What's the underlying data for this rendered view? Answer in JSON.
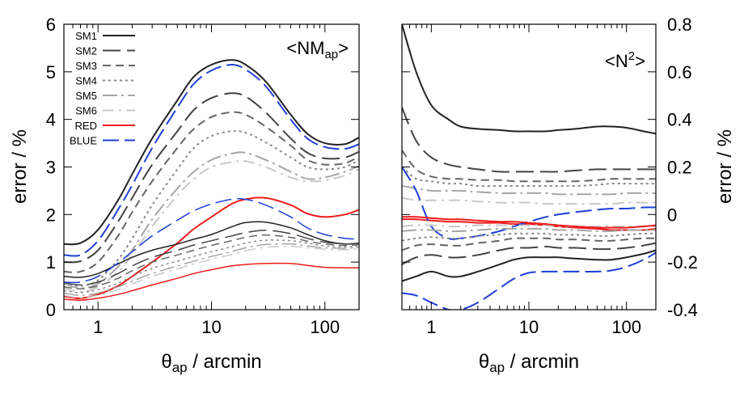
{
  "chart_data": [
    {
      "type": "line",
      "panel": "left",
      "annotation": "<NMap>",
      "xlabel": "θap / arcmin",
      "ylabel": "error / %",
      "xscale": "log",
      "xlim": [
        0.5,
        200
      ],
      "ylim": [
        0,
        6
      ],
      "x_ticks": [
        1,
        10,
        100
      ],
      "y_ticks": [
        0,
        1,
        2,
        3,
        4,
        5,
        6
      ],
      "y_axis_side": "left",
      "grid": false,
      "legend_position": "top-left",
      "x": [
        0.5,
        0.7,
        1,
        1.5,
        2,
        3,
        5,
        7,
        10,
        15,
        20,
        30,
        50,
        70,
        100,
        150,
        200
      ],
      "series": [
        {
          "name": "SM1",
          "color": "#222222",
          "dash": "solid",
          "width": 2,
          "values": [
            1.38,
            1.4,
            1.68,
            2.3,
            2.85,
            3.6,
            4.4,
            4.9,
            5.15,
            5.25,
            5.15,
            4.8,
            4.1,
            3.7,
            3.5,
            3.48,
            3.62
          ]
        },
        {
          "name": "SM2",
          "color": "#444444",
          "dash": "22,8",
          "width": 2,
          "values": [
            1.0,
            1.02,
            1.25,
            1.85,
            2.35,
            3.05,
            3.75,
            4.2,
            4.45,
            4.55,
            4.48,
            4.15,
            3.6,
            3.3,
            3.18,
            3.2,
            3.32
          ]
        },
        {
          "name": "SM3",
          "color": "#666666",
          "dash": "10,6",
          "width": 2,
          "values": [
            0.8,
            0.8,
            1.0,
            1.55,
            2.05,
            2.7,
            3.4,
            3.8,
            4.05,
            4.15,
            4.1,
            3.85,
            3.45,
            3.15,
            3.05,
            3.08,
            3.22
          ]
        },
        {
          "name": "SM4",
          "color": "#888888",
          "dash": "3,4",
          "width": 2,
          "values": [
            0.55,
            0.5,
            0.62,
            1.05,
            1.5,
            2.2,
            2.95,
            3.4,
            3.65,
            3.75,
            3.72,
            3.52,
            3.2,
            3.0,
            2.95,
            3.0,
            3.15
          ]
        },
        {
          "name": "SM5",
          "color": "#a6a6a6",
          "dash": "18,5,3,5",
          "width": 2,
          "values": [
            0.55,
            0.45,
            0.55,
            0.9,
            1.25,
            1.9,
            2.55,
            2.9,
            3.15,
            3.28,
            3.3,
            3.15,
            2.9,
            2.75,
            2.78,
            2.9,
            3.02
          ]
        },
        {
          "name": "SM6",
          "color": "#c8c8c8",
          "dash": "14,6,3,6",
          "width": 2,
          "values": [
            0.45,
            0.38,
            0.48,
            0.8,
            1.15,
            1.75,
            2.4,
            2.75,
            3.0,
            3.1,
            3.12,
            3.0,
            2.78,
            2.7,
            2.72,
            2.82,
            2.95
          ]
        },
        {
          "name": "RED",
          "color": "#ee1c1c",
          "dash": "solid",
          "width": 2,
          "values": [
            0.28,
            0.24,
            0.32,
            0.5,
            0.7,
            1.0,
            1.4,
            1.7,
            1.95,
            2.22,
            2.32,
            2.35,
            2.2,
            2.02,
            1.95,
            2.0,
            2.1
          ]
        },
        {
          "name": "BLUE",
          "color": "#1f3fd6",
          "dash": "20,7",
          "width": 2,
          "values": [
            1.15,
            1.15,
            1.45,
            2.1,
            2.62,
            3.4,
            4.25,
            4.75,
            5.03,
            5.15,
            5.05,
            4.7,
            4.0,
            3.6,
            3.42,
            3.38,
            3.48
          ]
        },
        {
          "color": "#222222",
          "dash": "solid",
          "width": 1.5,
          "values": [
            0.7,
            0.68,
            0.76,
            0.96,
            1.1,
            1.25,
            1.38,
            1.48,
            1.58,
            1.74,
            1.83,
            1.84,
            1.72,
            1.58,
            1.45,
            1.38,
            1.4
          ]
        },
        {
          "color": "#444444",
          "dash": "22,8",
          "width": 1.5,
          "values": [
            0.57,
            0.52,
            0.58,
            0.76,
            0.92,
            1.1,
            1.25,
            1.36,
            1.45,
            1.55,
            1.62,
            1.67,
            1.6,
            1.5,
            1.42,
            1.38,
            1.4
          ]
        },
        {
          "color": "#666666",
          "dash": "10,6",
          "width": 1.5,
          "values": [
            0.48,
            0.44,
            0.5,
            0.66,
            0.82,
            1.0,
            1.15,
            1.25,
            1.35,
            1.45,
            1.52,
            1.57,
            1.52,
            1.44,
            1.38,
            1.35,
            1.37
          ]
        },
        {
          "color": "#888888",
          "dash": "3,4",
          "width": 1.5,
          "values": [
            0.4,
            0.36,
            0.42,
            0.56,
            0.7,
            0.87,
            1.02,
            1.12,
            1.22,
            1.32,
            1.4,
            1.46,
            1.45,
            1.4,
            1.34,
            1.32,
            1.34
          ]
        },
        {
          "color": "#a6a6a6",
          "dash": "18,5,3,5",
          "width": 1.5,
          "values": [
            0.35,
            0.3,
            0.35,
            0.48,
            0.6,
            0.76,
            0.92,
            1.02,
            1.12,
            1.22,
            1.3,
            1.37,
            1.38,
            1.34,
            1.3,
            1.29,
            1.31
          ]
        },
        {
          "color": "#c8c8c8",
          "dash": "14,6,3,6",
          "width": 1.5,
          "values": [
            0.3,
            0.25,
            0.3,
            0.42,
            0.54,
            0.7,
            0.86,
            0.96,
            1.06,
            1.16,
            1.24,
            1.31,
            1.33,
            1.3,
            1.27,
            1.26,
            1.28
          ]
        },
        {
          "color": "#ee1c1c",
          "dash": "solid",
          "width": 1.5,
          "values": [
            0.22,
            0.2,
            0.24,
            0.32,
            0.4,
            0.52,
            0.66,
            0.76,
            0.84,
            0.92,
            0.95,
            0.97,
            0.97,
            0.93,
            0.89,
            0.88,
            0.88
          ]
        },
        {
          "color": "#1f3fd6",
          "dash": "20,7",
          "width": 1.5,
          "values": [
            0.58,
            0.58,
            0.7,
            0.98,
            1.22,
            1.55,
            1.88,
            2.08,
            2.22,
            2.32,
            2.32,
            2.2,
            1.95,
            1.72,
            1.58,
            1.5,
            1.48
          ]
        }
      ]
    },
    {
      "type": "line",
      "panel": "right",
      "annotation": "<N2>",
      "xlabel": "θap / arcmin",
      "ylabel": "error / %",
      "xscale": "log",
      "xlim": [
        0.5,
        200
      ],
      "ylim": [
        -0.4,
        0.8
      ],
      "x_ticks": [
        1,
        10,
        100
      ],
      "y_ticks": [
        -0.4,
        -0.2,
        0,
        0.2,
        0.4,
        0.6,
        0.8
      ],
      "y_axis_side": "right",
      "grid": false,
      "x": [
        0.5,
        0.7,
        1,
        1.5,
        2,
        3,
        5,
        7,
        10,
        15,
        20,
        30,
        50,
        70,
        100,
        150,
        200
      ],
      "series": [
        {
          "color": "#222222",
          "dash": "solid",
          "width": 2,
          "values": [
            0.8,
            0.6,
            0.46,
            0.4,
            0.37,
            0.36,
            0.355,
            0.35,
            0.35,
            0.35,
            0.355,
            0.36,
            0.37,
            0.37,
            0.365,
            0.35,
            0.34
          ]
        },
        {
          "color": "#444444",
          "dash": "22,8",
          "width": 2,
          "values": [
            0.45,
            0.31,
            0.24,
            0.21,
            0.2,
            0.19,
            0.18,
            0.18,
            0.18,
            0.18,
            0.18,
            0.185,
            0.19,
            0.19,
            0.19,
            0.19,
            0.19
          ]
        },
        {
          "color": "#666666",
          "dash": "10,6",
          "width": 2,
          "values": [
            0.27,
            0.19,
            0.16,
            0.15,
            0.15,
            0.145,
            0.145,
            0.14,
            0.14,
            0.14,
            0.14,
            0.14,
            0.145,
            0.15,
            0.15,
            0.15,
            0.15
          ]
        },
        {
          "color": "#888888",
          "dash": "3,4",
          "width": 2,
          "values": [
            0.2,
            0.15,
            0.14,
            0.13,
            0.13,
            0.12,
            0.12,
            0.12,
            0.12,
            0.12,
            0.12,
            0.12,
            0.125,
            0.13,
            0.13,
            0.13,
            0.13
          ]
        },
        {
          "color": "#a6a6a6",
          "dash": "18,5,3,5",
          "width": 2,
          "values": [
            0.12,
            0.11,
            0.1,
            0.1,
            0.1,
            0.095,
            0.09,
            0.09,
            0.09,
            0.09,
            0.085,
            0.085,
            0.085,
            0.085,
            0.09,
            0.09,
            0.09
          ]
        },
        {
          "color": "#c8c8c8",
          "dash": "14,6,3,6",
          "width": 2,
          "values": [
            0.07,
            0.06,
            0.06,
            0.06,
            0.06,
            0.055,
            0.05,
            0.05,
            0.05,
            0.045,
            0.045,
            0.045,
            0.045,
            0.045,
            0.05,
            0.05,
            0.05
          ]
        },
        {
          "color": "#ee1c1c",
          "dash": "solid",
          "width": 2,
          "values": [
            -0.02,
            -0.02,
            -0.025,
            -0.03,
            -0.03,
            -0.035,
            -0.035,
            -0.04,
            -0.04,
            -0.045,
            -0.05,
            -0.055,
            -0.06,
            -0.065,
            -0.065,
            -0.065,
            -0.06
          ]
        },
        {
          "color": "#1f3fd6",
          "dash": "20,7",
          "width": 2,
          "values": [
            0.2,
            0.1,
            -0.05,
            -0.1,
            -0.1,
            -0.09,
            -0.07,
            -0.05,
            -0.03,
            -0.01,
            0.0,
            0.01,
            0.02,
            0.025,
            0.025,
            0.03,
            0.03
          ]
        },
        {
          "color": "#222222",
          "dash": "solid",
          "width": 2,
          "values": [
            -0.28,
            -0.26,
            -0.24,
            -0.26,
            -0.26,
            -0.24,
            -0.21,
            -0.19,
            -0.18,
            -0.18,
            -0.18,
            -0.185,
            -0.19,
            -0.19,
            -0.18,
            -0.165,
            -0.15
          ]
        },
        {
          "color": "#444444",
          "dash": "22,8",
          "width": 2,
          "values": [
            -0.21,
            -0.18,
            -0.17,
            -0.18,
            -0.18,
            -0.17,
            -0.15,
            -0.14,
            -0.14,
            -0.135,
            -0.14,
            -0.14,
            -0.145,
            -0.145,
            -0.14,
            -0.13,
            -0.12
          ]
        },
        {
          "color": "#666666",
          "dash": "10,6",
          "width": 2,
          "values": [
            -0.15,
            -0.13,
            -0.125,
            -0.13,
            -0.13,
            -0.12,
            -0.11,
            -0.1,
            -0.1,
            -0.1,
            -0.105,
            -0.105,
            -0.11,
            -0.11,
            -0.105,
            -0.1,
            -0.1
          ]
        },
        {
          "color": "#888888",
          "dash": "3,4",
          "width": 2,
          "values": [
            -0.11,
            -0.1,
            -0.095,
            -0.1,
            -0.1,
            -0.09,
            -0.085,
            -0.08,
            -0.08,
            -0.08,
            -0.085,
            -0.085,
            -0.09,
            -0.09,
            -0.085,
            -0.08,
            -0.08
          ]
        },
        {
          "color": "#a6a6a6",
          "dash": "18,5,3,5",
          "width": 2,
          "values": [
            -0.07,
            -0.065,
            -0.065,
            -0.07,
            -0.07,
            -0.065,
            -0.06,
            -0.06,
            -0.06,
            -0.06,
            -0.065,
            -0.065,
            -0.07,
            -0.07,
            -0.065,
            -0.065,
            -0.065
          ]
        },
        {
          "color": "#c8c8c8",
          "dash": "14,6,3,6",
          "width": 2,
          "values": [
            -0.05,
            -0.045,
            -0.045,
            -0.05,
            -0.05,
            -0.045,
            -0.045,
            -0.045,
            -0.045,
            -0.045,
            -0.05,
            -0.05,
            -0.05,
            -0.05,
            -0.05,
            -0.05,
            -0.05
          ]
        },
        {
          "color": "#ee1c1c",
          "dash": "solid",
          "width": 2,
          "values": [
            -0.01,
            -0.01,
            -0.015,
            -0.02,
            -0.02,
            -0.025,
            -0.03,
            -0.03,
            -0.035,
            -0.04,
            -0.045,
            -0.05,
            -0.055,
            -0.055,
            -0.055,
            -0.05,
            -0.045
          ]
        },
        {
          "color": "#1f3fd6",
          "dash": "20,7",
          "width": 2,
          "values": [
            -0.33,
            -0.34,
            -0.37,
            -0.4,
            -0.4,
            -0.37,
            -0.31,
            -0.27,
            -0.245,
            -0.24,
            -0.24,
            -0.24,
            -0.24,
            -0.235,
            -0.22,
            -0.19,
            -0.16
          ]
        }
      ]
    }
  ]
}
